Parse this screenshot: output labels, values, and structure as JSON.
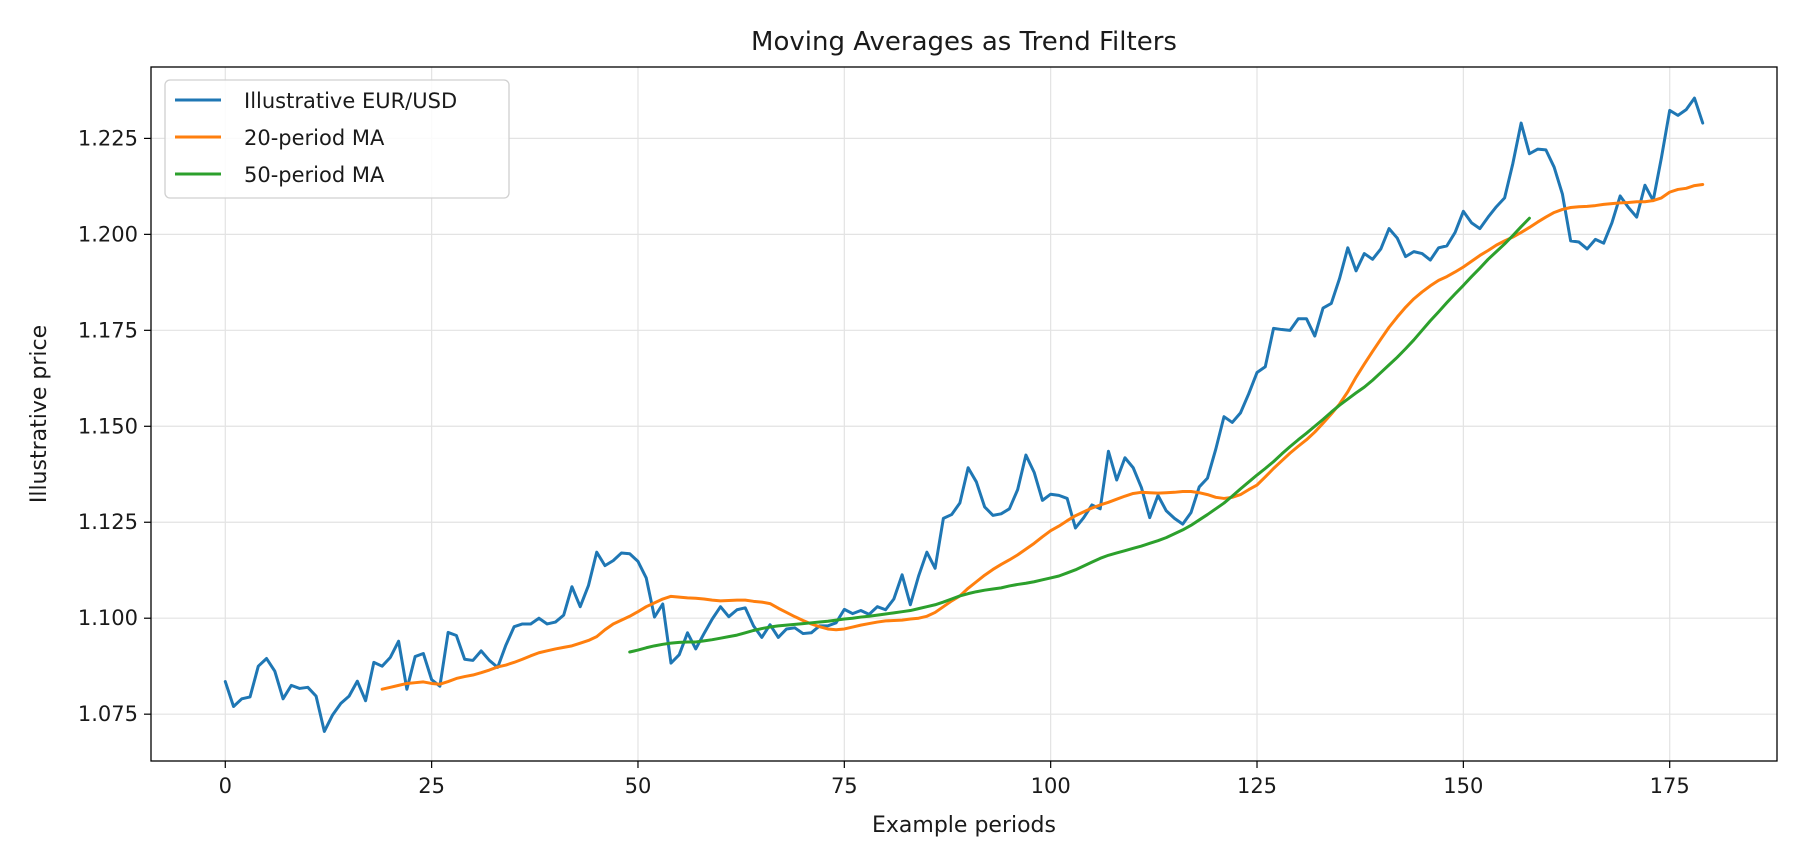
{
  "chart_data": {
    "type": "line",
    "title": "Moving Averages as Trend Filters",
    "xlabel": "Example periods",
    "ylabel": "Illustrative price",
    "xlim": [
      -9,
      188
    ],
    "ylim": [
      1.0628,
      1.2436
    ],
    "xticks": [
      0,
      25,
      50,
      75,
      100,
      125,
      150,
      175
    ],
    "yticks": [
      1.075,
      1.1,
      1.125,
      1.15,
      1.175,
      1.2,
      1.225
    ],
    "grid": true,
    "legend_position": "top-left",
    "series": [
      {
        "name": "Illustrative EUR/USD",
        "color": "#1f77b4",
        "x_start": 0,
        "values": [
          1.0835,
          1.077,
          1.079,
          1.0795,
          1.0875,
          1.0895,
          1.0862,
          1.079,
          1.0825,
          1.0817,
          1.082,
          1.0797,
          1.0705,
          1.0748,
          1.0778,
          1.0797,
          1.0836,
          1.0785,
          1.0885,
          1.0875,
          1.0898,
          1.094,
          1.0815,
          1.09,
          1.0908,
          1.084,
          1.0823,
          1.0963,
          1.0955,
          1.0893,
          1.089,
          1.0915,
          1.089,
          1.0872,
          1.093,
          1.0978,
          1.0985,
          1.0985,
          1.1,
          1.0985,
          1.099,
          1.1008,
          1.1082,
          1.103,
          1.1085,
          1.1172,
          1.1137,
          1.115,
          1.117,
          1.1168,
          1.1148,
          1.1105,
          1.1003,
          1.1037,
          1.0883,
          1.0905,
          1.0962,
          1.092,
          1.096,
          1.0998,
          1.103,
          1.1004,
          1.1022,
          1.1027,
          1.098,
          1.095,
          1.0983,
          1.095,
          1.0972,
          1.0975,
          1.096,
          1.0962,
          1.098,
          1.098,
          1.0988,
          1.1023,
          1.1012,
          1.102,
          1.101,
          1.103,
          1.1022,
          1.105,
          1.1113,
          1.1035,
          1.111,
          1.1172,
          1.113,
          1.126,
          1.127,
          1.13,
          1.1392,
          1.1355,
          1.129,
          1.1268,
          1.1272,
          1.1285,
          1.1335,
          1.1425,
          1.138,
          1.1307,
          1.1323,
          1.132,
          1.1312,
          1.1235,
          1.1262,
          1.1295,
          1.1285,
          1.1435,
          1.136,
          1.1418,
          1.1392,
          1.134,
          1.1262,
          1.132,
          1.128,
          1.126,
          1.1245,
          1.1275,
          1.1342,
          1.1365,
          1.144,
          1.1525,
          1.151,
          1.1535,
          1.1585,
          1.164,
          1.1655,
          1.1755,
          1.1752,
          1.175,
          1.178,
          1.178,
          1.1735,
          1.1808,
          1.182,
          1.1885,
          1.1965,
          1.1905,
          1.195,
          1.1935,
          1.1962,
          1.2015,
          1.199,
          1.1942,
          1.1955,
          1.195,
          1.1933,
          1.1965,
          1.197,
          1.2005,
          1.206,
          1.203,
          1.2015,
          1.2045,
          1.2072,
          1.2095,
          1.2185,
          1.229,
          1.221,
          1.2222,
          1.222,
          1.2175,
          1.2105,
          1.1983,
          1.198,
          1.1962,
          1.1987,
          1.1977,
          1.203,
          1.21,
          1.207,
          1.2045,
          1.2128,
          1.2088,
          1.22,
          1.2323,
          1.231,
          1.2325,
          1.2355,
          1.229
        ]
      },
      {
        "name": "20-period MA",
        "color": "#ff7f0e",
        "x_start": 19,
        "values": [
          1.0815,
          1.082,
          1.0825,
          1.083,
          1.0832,
          1.0834,
          1.083,
          1.0828,
          1.0835,
          1.0843,
          1.0848,
          1.0852,
          1.0858,
          1.0865,
          1.0873,
          1.0878,
          1.0885,
          1.0893,
          1.0902,
          1.091,
          1.0915,
          1.092,
          1.0924,
          1.0928,
          1.0935,
          1.0942,
          1.0952,
          1.097,
          1.0985,
          1.0995,
          1.1005,
          1.1017,
          1.103,
          1.104,
          1.105,
          1.1057,
          1.1055,
          1.1053,
          1.1052,
          1.105,
          1.1047,
          1.1045,
          1.1046,
          1.1047,
          1.1047,
          1.1044,
          1.1042,
          1.1038,
          1.1026,
          1.1015,
          1.1004,
          1.0994,
          1.0985,
          1.0978,
          1.0972,
          1.097,
          1.0972,
          1.0977,
          1.0982,
          1.0986,
          1.099,
          1.0993,
          1.0994,
          1.0995,
          1.0998,
          1.1,
          1.1005,
          1.1015,
          1.103,
          1.1045,
          1.1058,
          1.1078,
          1.1095,
          1.1112,
          1.1127,
          1.114,
          1.1152,
          1.1165,
          1.118,
          1.1195,
          1.1212,
          1.1228,
          1.124,
          1.1254,
          1.1267,
          1.1277,
          1.1287,
          1.1295,
          1.1302,
          1.131,
          1.1318,
          1.1325,
          1.1328,
          1.1327,
          1.1326,
          1.1327,
          1.1328,
          1.133,
          1.133,
          1.1327,
          1.1322,
          1.1315,
          1.1312,
          1.1315,
          1.1322,
          1.1335,
          1.1347,
          1.1368,
          1.139,
          1.141,
          1.143,
          1.1448,
          1.1465,
          1.1485,
          1.1508,
          1.1532,
          1.1558,
          1.159,
          1.1628,
          1.1662,
          1.1695,
          1.1727,
          1.1758,
          1.1785,
          1.181,
          1.1832,
          1.185,
          1.1866,
          1.188,
          1.189,
          1.1902,
          1.1915,
          1.193,
          1.1945,
          1.1958,
          1.1972,
          1.1983,
          1.1993,
          1.2005,
          1.2018,
          1.2032,
          1.2045,
          1.2057,
          1.2065,
          1.207,
          1.2072,
          1.2073,
          1.2075,
          1.2078,
          1.208,
          1.2082,
          1.2083,
          1.2085,
          1.2085,
          1.2088,
          1.2095,
          1.211,
          1.2117,
          1.212,
          1.2127,
          1.213
        ]
      },
      {
        "name": "50-period MA",
        "color": "#2ca02c",
        "x_start": 49,
        "values": [
          1.0912,
          1.0917,
          1.0923,
          1.0928,
          1.0932,
          1.0935,
          1.0937,
          1.0938,
          1.0938,
          1.0941,
          1.0944,
          1.0948,
          1.0952,
          1.0956,
          1.0962,
          1.0968,
          1.0973,
          1.0977,
          1.098,
          1.0982,
          1.0984,
          1.0986,
          1.0988,
          1.099,
          1.0992,
          1.0995,
          1.0998,
          1.1,
          1.1003,
          1.1005,
          1.1008,
          1.1011,
          1.1014,
          1.1017,
          1.102,
          1.1025,
          1.103,
          1.1035,
          1.1042,
          1.105,
          1.1058,
          1.1064,
          1.1069,
          1.1073,
          1.1076,
          1.1079,
          1.1084,
          1.1088,
          1.1091,
          1.1095,
          1.11,
          1.1105,
          1.111,
          1.1118,
          1.1126,
          1.1136,
          1.1146,
          1.1156,
          1.1164,
          1.117,
          1.1176,
          1.1182,
          1.1188,
          1.1195,
          1.1202,
          1.121,
          1.122,
          1.123,
          1.1242,
          1.1256,
          1.127,
          1.1285,
          1.13,
          1.1318,
          1.1337,
          1.1355,
          1.1373,
          1.139,
          1.1408,
          1.1428,
          1.1447,
          1.1465,
          1.1482,
          1.15,
          1.1518,
          1.1537,
          1.1555,
          1.1571,
          1.1587,
          1.1602,
          1.162,
          1.164,
          1.166,
          1.168,
          1.1702,
          1.1725,
          1.175,
          1.1775,
          1.1798,
          1.1822,
          1.1845,
          1.1867,
          1.189,
          1.1912,
          1.1935,
          1.1955,
          1.1975,
          1.1997,
          1.202,
          1.2042
        ]
      }
    ]
  }
}
